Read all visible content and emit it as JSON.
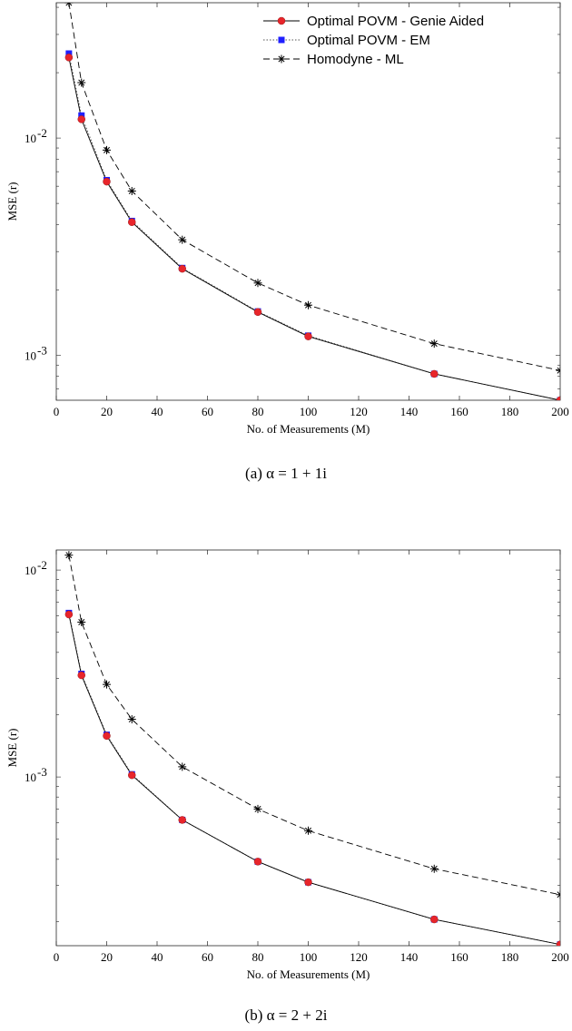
{
  "charts": [
    {
      "type": "line",
      "log_y": true,
      "xlabel": "No. of Measurements (M)",
      "ylabel": "MSE (r)",
      "caption": "(a)  α = 1 + 1i",
      "xlim": [
        0,
        200
      ],
      "ylim": [
        0.00062,
        0.042
      ],
      "xticks": [
        0,
        20,
        40,
        60,
        80,
        100,
        120,
        140,
        160,
        180,
        200
      ],
      "yticks_major": [
        {
          "value": 0.001,
          "label": "10-3"
        },
        {
          "value": 0.01,
          "label": "10-2"
        }
      ],
      "x": [
        5,
        10,
        20,
        30,
        50,
        80,
        100,
        150,
        200
      ],
      "legend_position": "top-right",
      "series": [
        {
          "name": "Optimal POVM - Genie Aided",
          "style": "solid",
          "marker": "circle",
          "color": "#e8252b",
          "values": [
            0.0235,
            0.0122,
            0.0063,
            0.0041,
            0.0025,
            0.00158,
            0.00122,
            0.00082,
            0.00062
          ]
        },
        {
          "name": "Optimal POVM - EM",
          "style": "dotted",
          "marker": "square",
          "color": "#1f1fff",
          "values": [
            0.0245,
            0.0127,
            0.0064,
            0.00415,
            0.00252,
            0.00159,
            0.00123,
            0.00082,
            0.00062
          ]
        },
        {
          "name": "Homodyne - ML",
          "style": "dashed",
          "marker": "asterisk",
          "color": "#000000",
          "values": [
            0.042,
            0.018,
            0.0088,
            0.0057,
            0.0034,
            0.00215,
            0.0017,
            0.00113,
            0.00085
          ]
        }
      ]
    },
    {
      "type": "line",
      "log_y": true,
      "xlabel": "No. of Measurements (M)",
      "ylabel": "MSE (r)",
      "caption": "(b)  α = 2 + 2i",
      "xlim": [
        0,
        200
      ],
      "ylim": [
        0.000153,
        0.0125
      ],
      "xticks": [
        0,
        20,
        40,
        60,
        80,
        100,
        120,
        140,
        160,
        180,
        200
      ],
      "yticks_major": [
        {
          "value": 0.001,
          "label": "10-3"
        },
        {
          "value": 0.01,
          "label": "10-2"
        }
      ],
      "x": [
        5,
        10,
        20,
        30,
        50,
        80,
        100,
        150,
        200
      ],
      "legend_position": "none",
      "series": [
        {
          "name": "Optimal POVM - Genie Aided",
          "style": "solid",
          "marker": "circle",
          "color": "#e8252b",
          "values": [
            0.0061,
            0.0031,
            0.00158,
            0.00102,
            0.00062,
            0.00039,
            0.00031,
            0.000205,
            0.000155
          ]
        },
        {
          "name": "Optimal POVM - EM",
          "style": "dotted",
          "marker": "square",
          "color": "#1f1fff",
          "values": [
            0.0062,
            0.00315,
            0.0016,
            0.00103,
            0.00062,
            0.00039,
            0.00031,
            0.000205,
            0.000155
          ]
        },
        {
          "name": "Homodyne - ML",
          "style": "dashed",
          "marker": "asterisk",
          "color": "#000000",
          "values": [
            0.0118,
            0.0056,
            0.0028,
            0.0019,
            0.00112,
            0.0007,
            0.00055,
            0.00036,
            0.00027
          ]
        }
      ]
    }
  ]
}
